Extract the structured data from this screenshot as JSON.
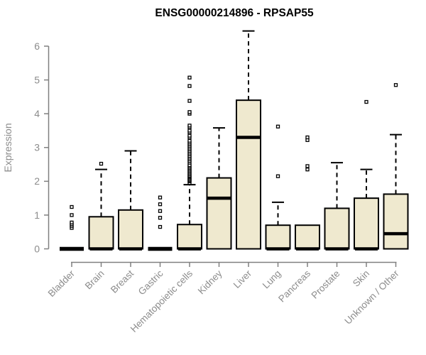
{
  "chart_data": {
    "type": "box",
    "title": "ENSG00000214896 - RPSAP55",
    "ylabel": "Expression",
    "xlabel": "",
    "ylim": [
      0,
      6.6
    ],
    "yticks": [
      0,
      1,
      2,
      3,
      4,
      5,
      6
    ],
    "grid": false,
    "legend": "none",
    "x_label_rotation": 45,
    "categories": [
      "Bladder",
      "Brain",
      "Breast",
      "Gastric",
      "Hematopoietic cells",
      "Kidney",
      "Liver",
      "Lung",
      "Pancreas",
      "Prostate",
      "Skin",
      "Unknown / Other"
    ],
    "boxes": [
      {
        "category": "Bladder",
        "q1": 0,
        "median": 0,
        "q3": 0,
        "whisker_low": 0,
        "whisker_high": 0,
        "outliers": [
          0.62,
          0.68,
          0.73,
          0.78,
          1.0,
          1.24
        ]
      },
      {
        "category": "Brain",
        "q1": 0,
        "median": 0,
        "q3": 0.95,
        "whisker_low": 0,
        "whisker_high": 2.35,
        "outliers": [
          2.52
        ]
      },
      {
        "category": "Breast",
        "q1": 0,
        "median": 0,
        "q3": 1.15,
        "whisker_low": 0,
        "whisker_high": 2.9,
        "outliers": []
      },
      {
        "category": "Gastric",
        "q1": 0,
        "median": 0,
        "q3": 0,
        "whisker_low": 0,
        "whisker_high": 0,
        "outliers": [
          0.65,
          0.92,
          1.12,
          1.32,
          1.52
        ]
      },
      {
        "category": "Hematopoietic cells",
        "q1": 0,
        "median": 0,
        "q3": 0.72,
        "whisker_low": 0,
        "whisker_high": 1.9,
        "outliers": [
          1.95,
          2.0,
          2.03,
          2.06,
          2.1,
          2.13,
          2.16,
          2.2,
          2.24,
          2.28,
          2.32,
          2.36,
          2.4,
          2.44,
          2.48,
          2.55,
          2.6,
          2.65,
          2.7,
          2.75,
          2.8,
          2.85,
          2.9,
          2.95,
          3.0,
          3.05,
          3.1,
          3.15,
          3.2,
          3.3,
          3.35,
          3.45,
          3.5,
          3.6,
          3.65,
          4.0,
          4.05,
          4.38,
          4.82,
          5.07
        ]
      },
      {
        "category": "Kidney",
        "q1": 0,
        "median": 1.5,
        "q3": 2.1,
        "whisker_low": 0,
        "whisker_high": 3.58,
        "outliers": []
      },
      {
        "category": "Liver",
        "q1": 0,
        "median": 3.3,
        "q3": 4.4,
        "whisker_low": 0,
        "whisker_high": 6.45,
        "outliers": []
      },
      {
        "category": "Lung",
        "q1": 0,
        "median": 0,
        "q3": 0.7,
        "whisker_low": 0,
        "whisker_high": 1.38,
        "outliers": [
          2.15,
          3.62
        ]
      },
      {
        "category": "Pancreas",
        "q1": 0,
        "median": 0,
        "q3": 0.7,
        "whisker_low": 0,
        "whisker_high": 0.7,
        "outliers": [
          2.35,
          2.45,
          3.22,
          3.3
        ]
      },
      {
        "category": "Prostate",
        "q1": 0,
        "median": 0,
        "q3": 1.2,
        "whisker_low": 0,
        "whisker_high": 2.55,
        "outliers": []
      },
      {
        "category": "Skin",
        "q1": 0,
        "median": 0,
        "q3": 1.5,
        "whisker_low": 0,
        "whisker_high": 2.35,
        "outliers": [
          4.35
        ]
      },
      {
        "category": "Unknown / Other",
        "q1": 0,
        "median": 0.45,
        "q3": 1.62,
        "whisker_low": 0,
        "whisker_high": 3.38,
        "outliers": [
          4.85
        ]
      }
    ],
    "colors": {
      "box_fill": "#EFE9CF",
      "box_border": "#000000",
      "median": "#000000",
      "whisker": "#000000",
      "outlier_stroke": "#000000",
      "outlier_fill": "#ffffff",
      "axis_line": "#808080",
      "axis_text": "#8C8C8C",
      "title": "#000000",
      "background": "#FFFFFF"
    }
  }
}
